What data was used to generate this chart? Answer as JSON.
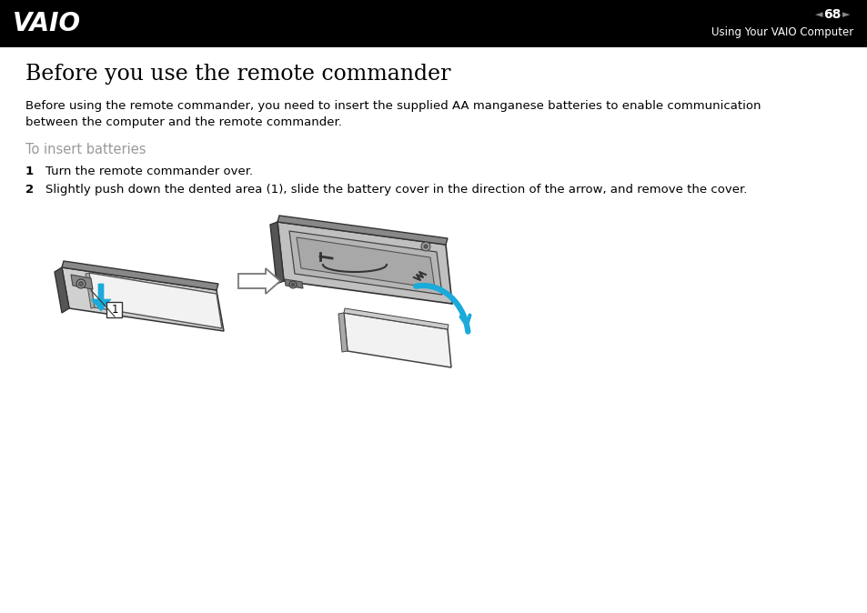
{
  "bg_color": "#ffffff",
  "header_bg": "#000000",
  "header_text_color": "#ffffff",
  "header_page_num": "68",
  "header_subtitle": "Using Your VAIO Computer",
  "title": "Before you use the remote commander",
  "title_fontsize": 17,
  "title_color": "#000000",
  "body_text": "Before using the remote commander, you need to insert the supplied AA manganese batteries to enable communication\nbetween the computer and the remote commander.",
  "body_fontsize": 9.5,
  "body_color": "#000000",
  "section_title": "To insert batteries",
  "section_title_color": "#999999",
  "section_title_fontsize": 10.5,
  "step1_num": "1",
  "step1_text": "Turn the remote commander over.",
  "step2_num": "2",
  "step2_text": "Slightly push down the dented area (1), slide the battery cover in the direction of the arrow, and remove the cover.",
  "step_fontsize": 9.5,
  "step_color": "#000000",
  "arrow_color": "#1aabdb",
  "remote_body_color": "#d0d0d0",
  "remote_edge_color": "#333333",
  "remote_dark_color": "#555555",
  "remote_cover_color": "#f2f2f2",
  "remote_inner_color": "#b8b8b8",
  "remote_comp_color": "#c0c0c0"
}
